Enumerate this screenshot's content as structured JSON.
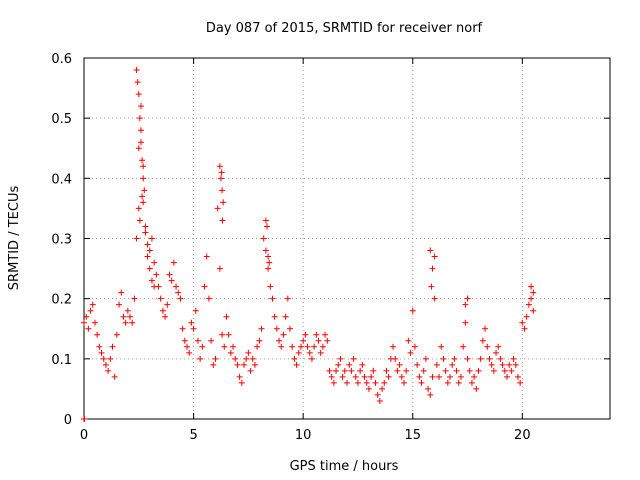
{
  "chart_data": {
    "type": "scatter",
    "title": "Day 087 of 2015, SRMTID for receiver norf",
    "xlabel": "GPS time / hours",
    "ylabel": "SRMTID / TECUs",
    "xlim": [
      0,
      24
    ],
    "ylim": [
      0,
      0.6
    ],
    "x_ticks": [
      0,
      5,
      10,
      15,
      20
    ],
    "x_tick_labels": [
      "0",
      "5",
      "10",
      "15",
      "20"
    ],
    "y_ticks": [
      0,
      0.1,
      0.2,
      0.3,
      0.4,
      0.5,
      0.6
    ],
    "y_tick_labels": [
      "0",
      "0.1",
      "0.2",
      "0.3",
      "0.4",
      "0.5",
      "0.6"
    ],
    "grid": true,
    "marker": "+",
    "series": [
      {
        "name": "norf",
        "color": "#ff0000",
        "x": [
          0.0,
          0.1,
          0.2,
          0.3,
          0.4,
          0.5,
          0.6,
          0.7,
          0.8,
          0.9,
          1.0,
          1.1,
          1.2,
          1.3,
          1.4,
          1.5,
          1.6,
          1.7,
          1.8,
          1.9,
          2.0,
          2.1,
          2.2,
          2.3,
          2.4,
          2.5,
          2.6,
          2.7,
          2.8,
          2.9,
          3.0,
          3.1,
          3.2,
          3.3,
          3.4,
          3.5,
          3.6,
          3.7,
          3.8,
          3.9,
          4.0,
          4.1,
          4.2,
          4.3,
          4.4,
          4.5,
          4.6,
          4.7,
          4.8,
          4.9,
          5.0,
          5.1,
          5.2,
          5.3,
          5.4,
          5.5,
          5.6,
          5.7,
          5.8,
          5.9,
          6.0,
          6.1,
          6.2,
          6.3,
          6.4,
          6.5,
          6.6,
          6.7,
          6.8,
          6.9,
          7.0,
          7.1,
          7.2,
          7.3,
          7.4,
          7.5,
          7.6,
          7.7,
          7.8,
          7.9,
          8.0,
          8.1,
          8.2,
          8.3,
          8.4,
          8.5,
          8.6,
          8.7,
          8.8,
          8.9,
          9.0,
          9.1,
          9.2,
          9.3,
          9.4,
          9.5,
          9.6,
          9.7,
          9.8,
          9.9,
          10.0,
          10.1,
          10.2,
          10.3,
          10.4,
          10.5,
          10.6,
          10.7,
          10.8,
          10.9,
          11.0,
          11.1,
          11.2,
          11.3,
          11.4,
          11.5,
          11.6,
          11.7,
          11.8,
          11.9,
          12.0,
          12.1,
          12.2,
          12.3,
          12.4,
          12.5,
          12.6,
          12.7,
          12.8,
          12.9,
          13.0,
          13.1,
          13.2,
          13.3,
          13.4,
          13.5,
          13.6,
          13.7,
          13.8,
          13.9,
          14.0,
          14.1,
          14.2,
          14.3,
          14.4,
          14.5,
          14.6,
          14.7,
          14.8,
          14.9,
          15.0,
          15.1,
          15.2,
          15.3,
          15.4,
          15.5,
          15.6,
          15.7,
          15.8,
          15.9,
          16.0,
          16.1,
          16.2,
          16.3,
          16.4,
          16.5,
          16.6,
          16.7,
          16.8,
          16.9,
          17.0,
          17.1,
          17.2,
          17.3,
          17.4,
          17.5,
          17.6,
          17.7,
          17.8,
          17.9,
          18.0,
          18.1,
          18.2,
          18.3,
          18.4,
          18.5,
          18.6,
          18.7,
          18.8,
          18.9,
          19.0,
          19.1,
          19.2,
          19.3,
          19.4,
          19.5,
          19.6,
          19.7,
          19.8,
          19.9,
          20.0,
          20.1,
          20.2,
          20.3,
          20.4,
          20.5,
          2.4,
          2.45,
          2.5,
          2.55,
          2.6,
          2.65,
          2.7,
          2.75,
          2.6,
          2.7,
          2.5,
          2.55,
          2.65,
          2.8,
          2.9,
          3.0,
          3.1,
          3.2,
          6.2,
          6.25,
          6.3,
          6.35,
          6.28,
          6.32,
          8.3,
          8.35,
          8.4,
          8.45,
          15.8,
          15.9,
          16.0,
          15.85,
          17.4,
          17.5,
          20.4,
          20.5,
          0.0,
          0.02
        ],
        "y": [
          0.16,
          0.17,
          0.15,
          0.18,
          0.19,
          0.16,
          0.14,
          0.12,
          0.11,
          0.1,
          0.09,
          0.08,
          0.1,
          0.12,
          0.07,
          0.14,
          0.19,
          0.21,
          0.17,
          0.16,
          0.18,
          0.17,
          0.16,
          0.2,
          0.3,
          0.45,
          0.52,
          0.36,
          0.32,
          0.29,
          0.28,
          0.3,
          0.26,
          0.24,
          0.22,
          0.2,
          0.18,
          0.17,
          0.19,
          0.24,
          0.23,
          0.26,
          0.22,
          0.21,
          0.2,
          0.15,
          0.13,
          0.12,
          0.11,
          0.16,
          0.15,
          0.18,
          0.13,
          0.1,
          0.12,
          0.22,
          0.27,
          0.2,
          0.13,
          0.09,
          0.1,
          0.35,
          0.25,
          0.14,
          0.12,
          0.17,
          0.14,
          0.11,
          0.12,
          0.1,
          0.09,
          0.07,
          0.06,
          0.09,
          0.1,
          0.11,
          0.08,
          0.1,
          0.09,
          0.12,
          0.13,
          0.15,
          0.3,
          0.28,
          0.25,
          0.22,
          0.2,
          0.17,
          0.15,
          0.13,
          0.12,
          0.14,
          0.17,
          0.2,
          0.15,
          0.12,
          0.1,
          0.09,
          0.11,
          0.12,
          0.13,
          0.14,
          0.12,
          0.11,
          0.1,
          0.12,
          0.14,
          0.13,
          0.11,
          0.12,
          0.14,
          0.13,
          0.08,
          0.07,
          0.06,
          0.08,
          0.09,
          0.1,
          0.07,
          0.08,
          0.06,
          0.09,
          0.08,
          0.1,
          0.07,
          0.06,
          0.08,
          0.09,
          0.07,
          0.06,
          0.05,
          0.07,
          0.08,
          0.06,
          0.04,
          0.03,
          0.05,
          0.06,
          0.08,
          0.07,
          0.1,
          0.12,
          0.1,
          0.08,
          0.09,
          0.07,
          0.06,
          0.08,
          0.13,
          0.11,
          0.18,
          0.12,
          0.09,
          0.07,
          0.06,
          0.08,
          0.1,
          0.05,
          0.04,
          0.07,
          0.2,
          0.09,
          0.07,
          0.12,
          0.1,
          0.08,
          0.06,
          0.07,
          0.09,
          0.1,
          0.08,
          0.06,
          0.07,
          0.12,
          0.16,
          0.1,
          0.08,
          0.06,
          0.07,
          0.05,
          0.08,
          0.1,
          0.13,
          0.15,
          0.12,
          0.1,
          0.09,
          0.08,
          0.11,
          0.12,
          0.1,
          0.09,
          0.08,
          0.07,
          0.09,
          0.08,
          0.1,
          0.09,
          0.07,
          0.06,
          0.16,
          0.15,
          0.17,
          0.19,
          0.2,
          0.21,
          0.58,
          0.56,
          0.54,
          0.5,
          0.46,
          0.43,
          0.4,
          0.38,
          0.48,
          0.42,
          0.35,
          0.33,
          0.37,
          0.31,
          0.27,
          0.25,
          0.23,
          0.22,
          0.42,
          0.4,
          0.38,
          0.36,
          0.41,
          0.33,
          0.33,
          0.32,
          0.27,
          0.26,
          0.28,
          0.25,
          0.27,
          0.22,
          0.19,
          0.2,
          0.22,
          0.18,
          0.0,
          0.0
        ]
      }
    ]
  }
}
